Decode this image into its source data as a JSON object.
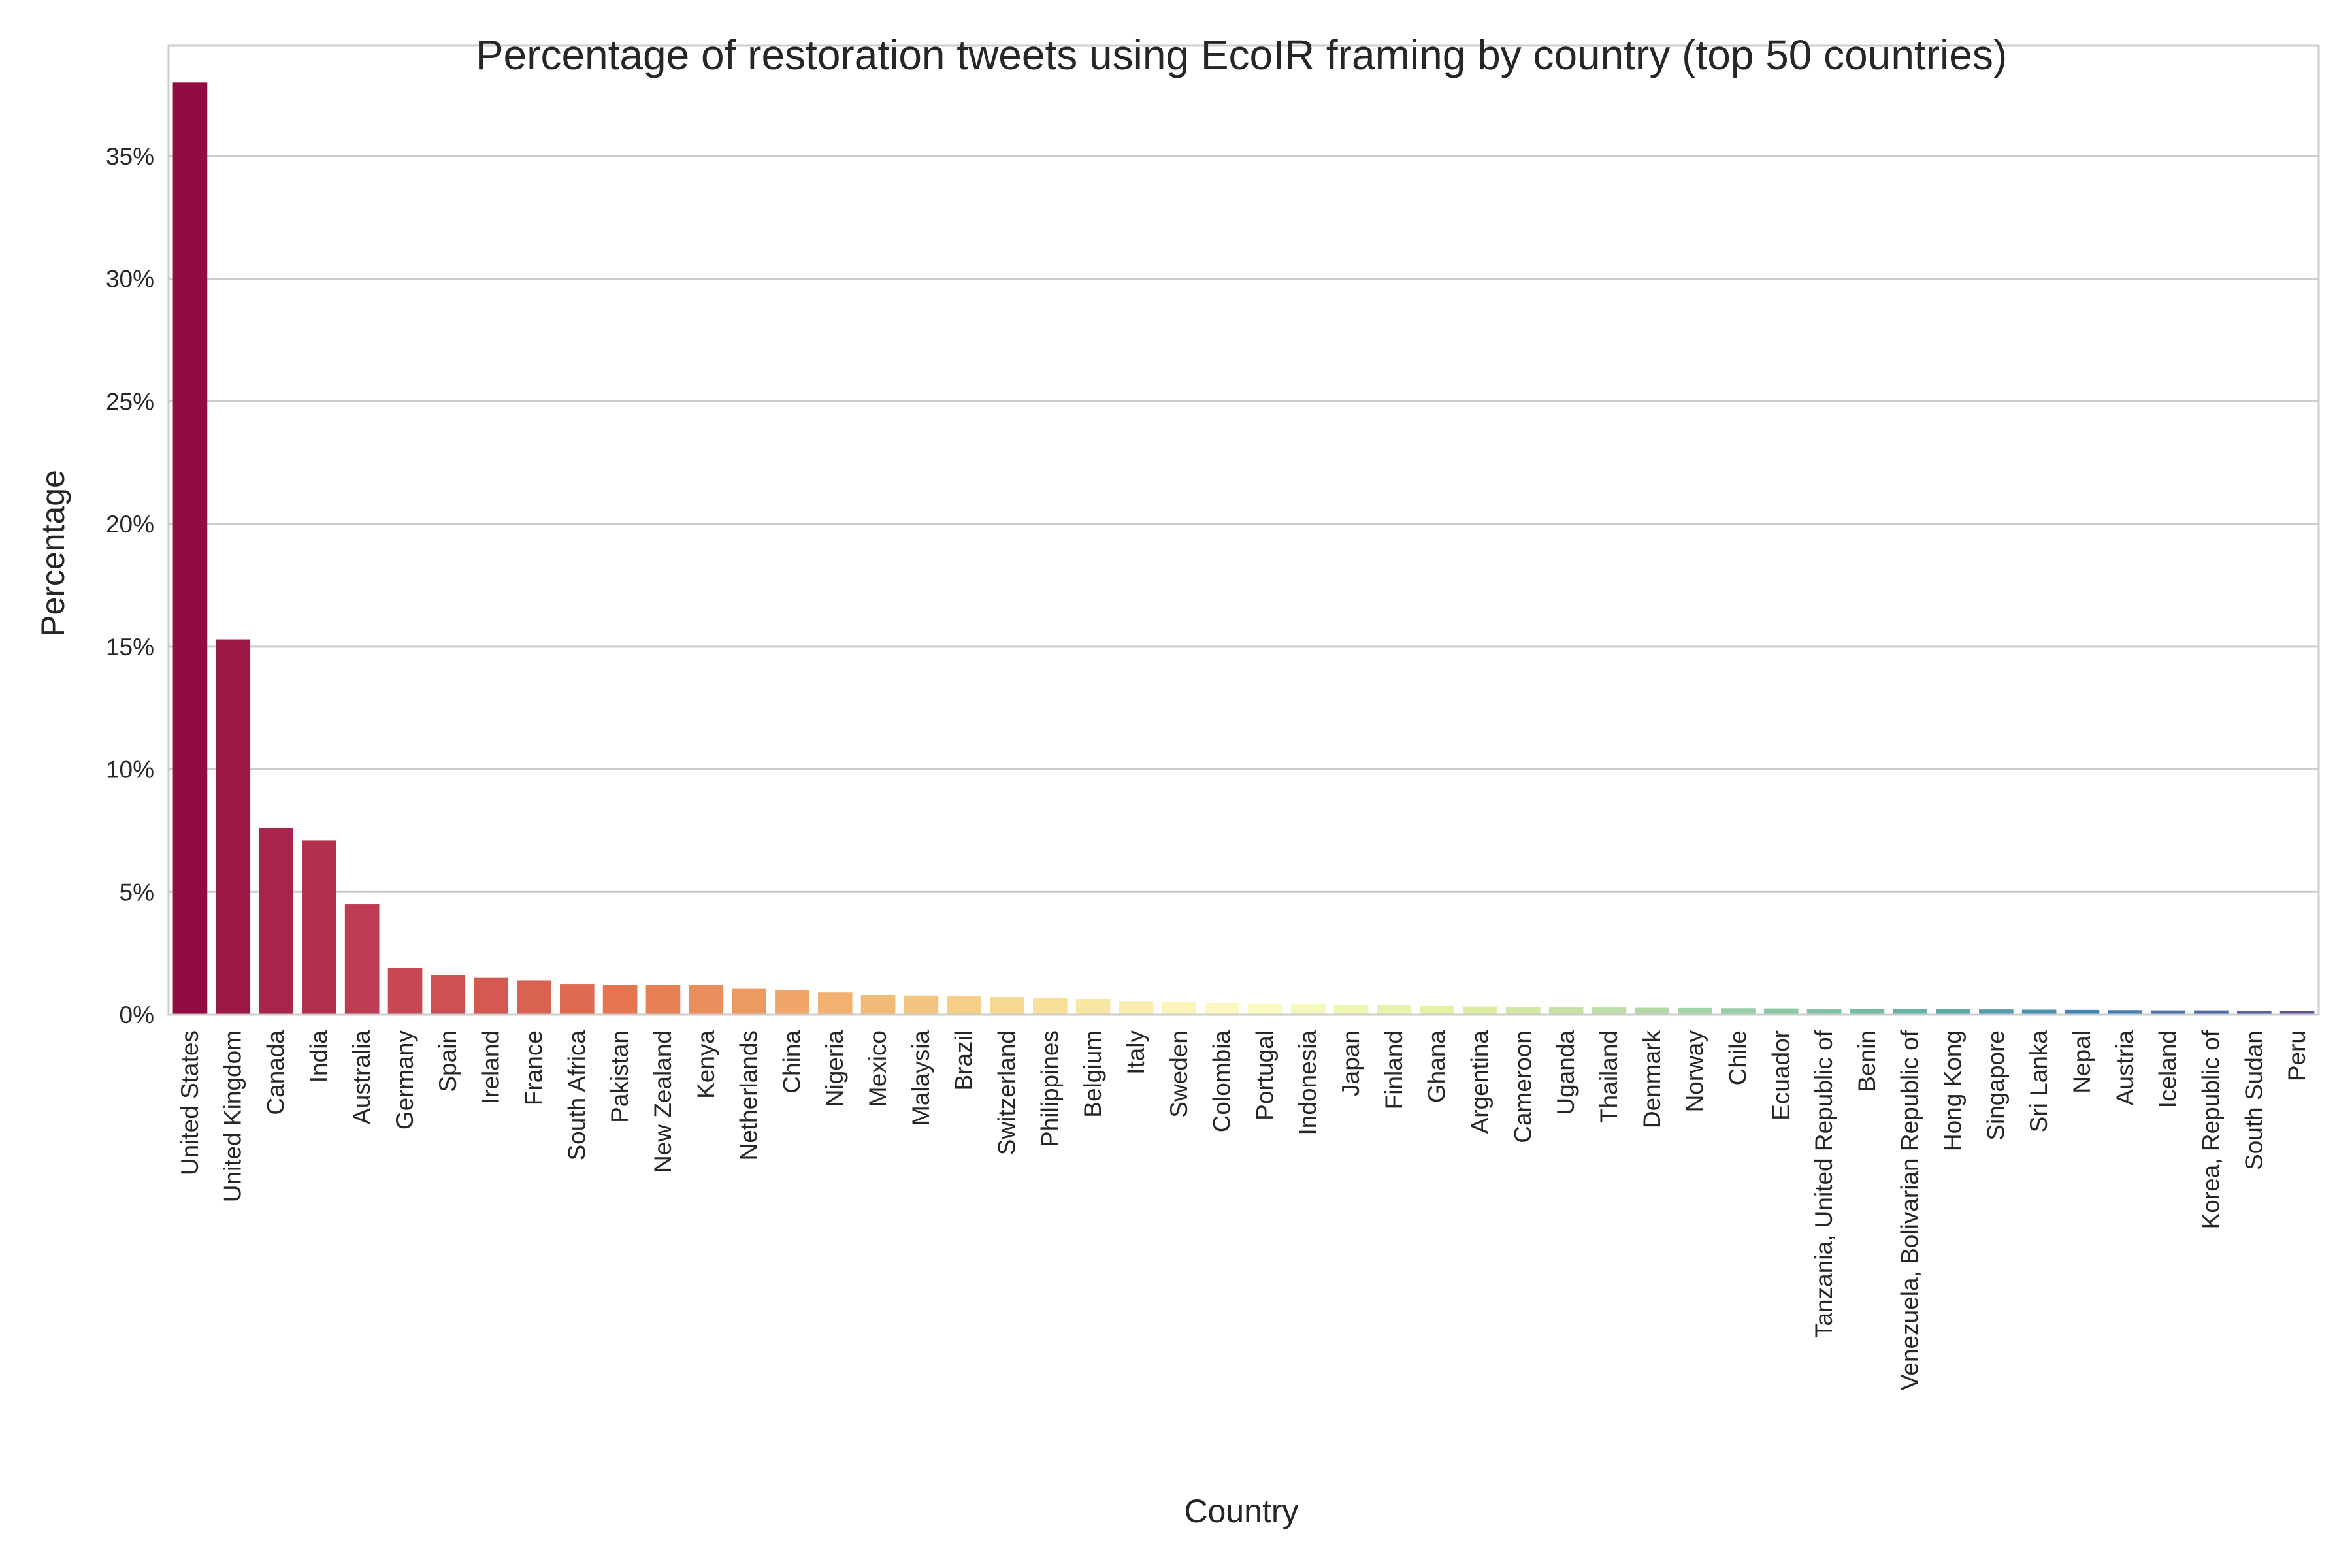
{
  "chart_data": {
    "type": "bar",
    "title": "Percentage of restoration tweets using EcoIR framing by country (top 50 countries)",
    "xlabel": "Country",
    "ylabel": "Percentage",
    "ylim": [
      0,
      39.5
    ],
    "yticks": [
      0,
      5,
      10,
      15,
      20,
      25,
      30,
      35
    ],
    "ytick_labels": [
      "0%",
      "5%",
      "10%",
      "15%",
      "20%",
      "25%",
      "30%",
      "35%"
    ],
    "grid": "horizontal",
    "palette": "Spectral",
    "categories": [
      "United States",
      "United Kingdom",
      "Canada",
      "India",
      "Australia",
      "Germany",
      "Spain",
      "Ireland",
      "France",
      "South Africa",
      "Pakistan",
      "New Zealand",
      "Kenya",
      "Netherlands",
      "China",
      "Nigeria",
      "Mexico",
      "Malaysia",
      "Brazil",
      "Switzerland",
      "Philippines",
      "Belgium",
      "Italy",
      "Sweden",
      "Colombia",
      "Portugal",
      "Indonesia",
      "Japan",
      "Finland",
      "Ghana",
      "Argentina",
      "Cameroon",
      "Uganda",
      "Thailand",
      "Denmark",
      "Norway",
      "Chile",
      "Ecuador",
      "Tanzania, United Republic of",
      "Benin",
      "Venezuela, Bolivarian Republic of",
      "Hong Kong",
      "Singapore",
      "Sri Lanka",
      "Nepal",
      "Austria",
      "Iceland",
      "Korea, Republic of",
      "South Sudan",
      "Peru"
    ],
    "values": [
      38.0,
      15.3,
      7.6,
      7.1,
      4.5,
      1.9,
      1.6,
      1.5,
      1.4,
      1.25,
      1.2,
      1.2,
      1.2,
      1.05,
      1.0,
      0.9,
      0.8,
      0.78,
      0.76,
      0.72,
      0.68,
      0.64,
      0.55,
      0.52,
      0.48,
      0.45,
      0.42,
      0.4,
      0.38,
      0.35,
      0.33,
      0.32,
      0.3,
      0.29,
      0.28,
      0.27,
      0.26,
      0.25,
      0.24,
      0.24,
      0.23,
      0.22,
      0.21,
      0.2,
      0.19,
      0.18,
      0.17,
      0.17,
      0.16,
      0.15
    ]
  }
}
